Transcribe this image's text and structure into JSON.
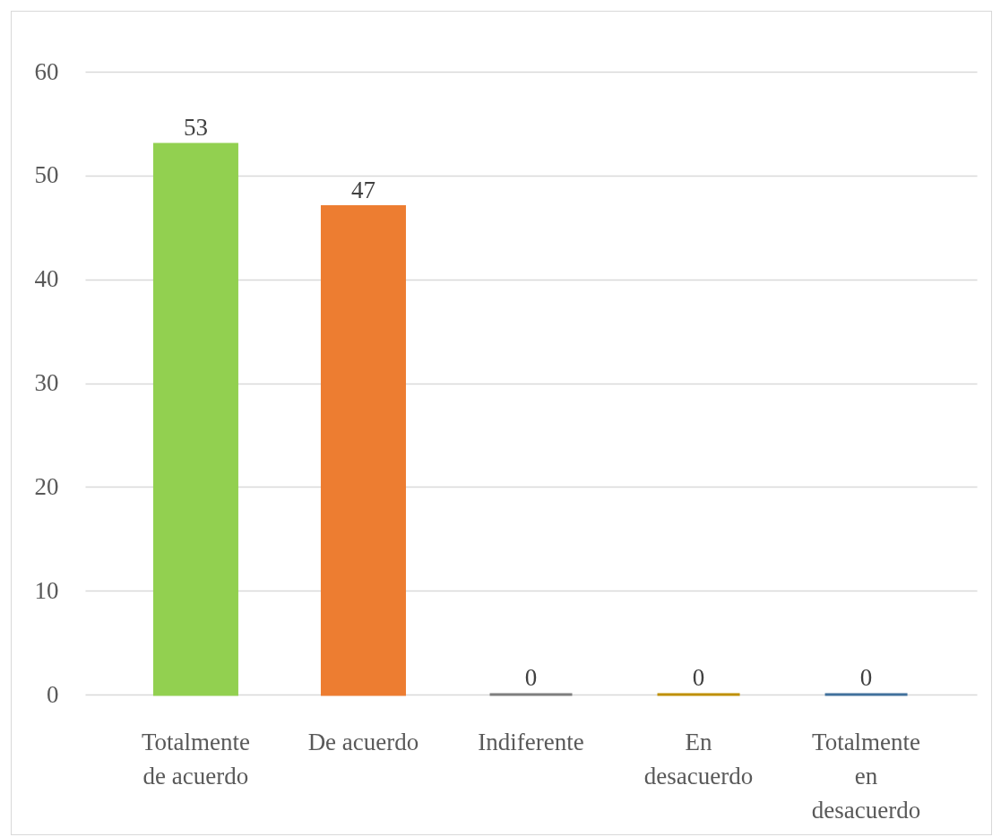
{
  "chart_data": {
    "type": "bar",
    "categories": [
      "Totalmente de acuerdo",
      "De acuerdo",
      "Indiferente",
      "En desacuerdo",
      "Totalmente en desacuerdo"
    ],
    "values": [
      53,
      47,
      0,
      0,
      0
    ],
    "colors": [
      "#92d050",
      "#ed7d31",
      "#7f7f7f",
      "#bf9000",
      "#41719c"
    ],
    "ylim": [
      0,
      60
    ],
    "yticks": [
      0,
      10,
      20,
      30,
      40,
      50,
      60
    ],
    "grid": "y",
    "data_labels": true
  }
}
